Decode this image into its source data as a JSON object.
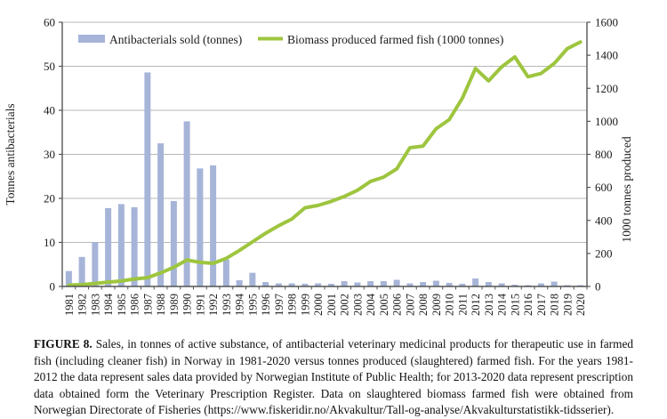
{
  "figure": {
    "caption_label": "FIGURE 8.",
    "caption_text": " Sales, in tonnes of active substance, of antibacterial veterinary medicinal products for therapeutic use in farmed fish (including cleaner fish) in Norway in 1981-2020 versus tonnes produced (slaughtered) farmed fish. For the years 1981-2012 the data represent sales data provided by Norwegian Institute of Public Health; for 2013-2020 data represent prescription data obtained form the Veterinary Prescription Register. Data on slaughtered biomass farmed fish were obtained from Norwegian Directorate of Fisheries (https://www.fiskeridir.no/Akvakultur/Tall-og-analyse/Akvakulturstatistikk-tidsserier)."
  },
  "chart_data": {
    "type": "bar",
    "subtype": "bar-and-line combo, dual y-axes",
    "categories": [
      1981,
      1982,
      1983,
      1984,
      1985,
      1986,
      1987,
      1988,
      1989,
      1990,
      1991,
      1992,
      1993,
      1994,
      1995,
      1996,
      1997,
      1998,
      1999,
      2000,
      2001,
      2002,
      2003,
      2004,
      2005,
      2006,
      2007,
      2008,
      2009,
      2010,
      2011,
      2012,
      2013,
      2014,
      2015,
      2016,
      2017,
      2018,
      2019,
      2020
    ],
    "series": [
      {
        "name": "Antibacterials sold (tonnes)",
        "kind": "bar",
        "axis": "left",
        "color": "#a6b4d8",
        "values": [
          3.5,
          6.7,
          10.1,
          17.8,
          18.7,
          18.0,
          48.6,
          32.5,
          19.4,
          37.5,
          26.8,
          27.5,
          6.1,
          1.4,
          3.1,
          1.0,
          0.7,
          0.7,
          0.6,
          0.7,
          0.6,
          1.2,
          0.9,
          1.2,
          1.2,
          1.5,
          0.7,
          1.0,
          1.3,
          0.8,
          0.6,
          1.8,
          1.0,
          0.7,
          0.4,
          0.3,
          0.7,
          1.1,
          0.3,
          0.3
        ]
      },
      {
        "name": "Biomass produced farmed fish (1000 tonnes)",
        "kind": "line",
        "axis": "right",
        "color": "#9dc53e",
        "values": [
          8,
          11,
          18,
          26,
          33,
          45,
          53,
          82,
          116,
          160,
          146,
          140,
          170,
          218,
          270,
          322,
          368,
          408,
          476,
          491,
          515,
          545,
          582,
          636,
          662,
          712,
          840,
          850,
          955,
          1010,
          1140,
          1320,
          1245,
          1330,
          1390,
          1270,
          1290,
          1350,
          1440,
          1480
        ]
      }
    ],
    "left_axis": {
      "label": "Tonnes antibacterials",
      "min": 0,
      "max": 60,
      "step": 10,
      "ticks": [
        0,
        10,
        20,
        30,
        40,
        50,
        60
      ]
    },
    "right_axis": {
      "label": "1000 tonnes produced",
      "min": 0,
      "max": 1600,
      "step": 200,
      "ticks": [
        0,
        200,
        400,
        600,
        800,
        1000,
        1200,
        1400,
        1600
      ]
    },
    "x_axis": {
      "label_rotation_deg": -90
    },
    "grid": true,
    "legend_position": "top-inside",
    "colors": {
      "grid": "#b8b8b8",
      "axis": "#555555",
      "text": "#1a1a1a",
      "background": "#ffffff"
    }
  }
}
